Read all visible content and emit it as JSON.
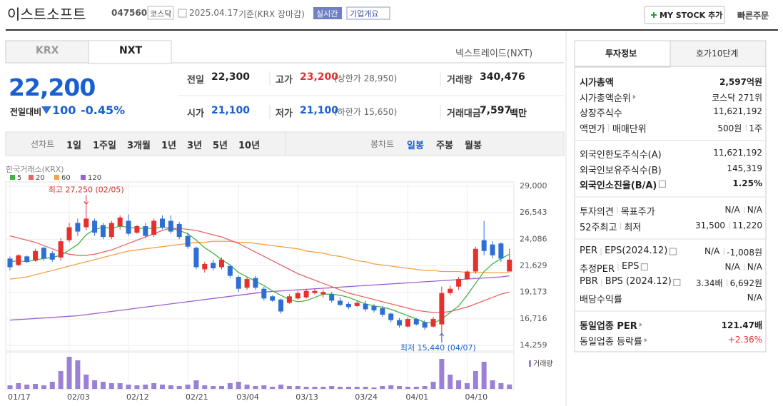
{
  "header": {
    "name": "이스트소프트",
    "code": "047560",
    "market": "코스닥",
    "date": "2025.04.17",
    "basis": "기준(KRX 장마감)",
    "realtime": "실시간",
    "company": "기업개요",
    "my_stock": "MY STOCK 추가",
    "quick_order": "빠른주문"
  },
  "exchange_tabs": [
    "KRX",
    "NXT"
  ],
  "nxt_link": "넥스트레이드(NXT)",
  "price": {
    "current": "22,200",
    "change_label": "전일대비",
    "change": "100",
    "change_rate": "-0.45%"
  },
  "quote": [
    [
      {
        "label": "전일",
        "value": "22,300"
      },
      {
        "label": "고가",
        "value": "23,200",
        "note": "(상한가 28,950)"
      },
      {
        "label": "거래량",
        "value": "340,476"
      }
    ],
    [
      {
        "label": "시가",
        "value": "21,100"
      },
      {
        "label": "저가",
        "value": "21,100",
        "note": "(하한가 15,650)"
      },
      {
        "label": "거래대금",
        "value": "7,597",
        "unit": "백만"
      }
    ]
  ],
  "period_tabs": {
    "label": "선차트",
    "items": [
      "1일",
      "1주일",
      "3개월",
      "1년",
      "3년",
      "5년",
      "10년"
    ]
  },
  "candle_tabs": {
    "label": "봉차트",
    "items": [
      "일봉",
      "주봉",
      "월봉"
    ]
  },
  "info_tabs": [
    "투자정보",
    "호가10단계"
  ],
  "info": [
    [
      {
        "labels": [
          "시가총액"
        ],
        "values": [
          "2,597억원"
        ]
      },
      {
        "labels": [
          "시가총액순위"
        ],
        "values": [
          "코스닥 271위"
        ]
      },
      {
        "labels": [
          "상장주식수"
        ],
        "values": [
          "11,621,192"
        ]
      },
      {
        "labels": [
          "액면가",
          "매매단위"
        ],
        "values": [
          "500원",
          "1주"
        ]
      }
    ],
    [
      {
        "labels": [
          "외국인한도주식수(A)"
        ],
        "values": [
          "11,621,192"
        ]
      },
      {
        "labels": [
          "외국인보유주식수(B)"
        ],
        "values": [
          "145,319"
        ]
      },
      {
        "labels": [
          "외국인소진율(B/A)"
        ],
        "values": [
          "1.25%"
        ]
      }
    ],
    [
      {
        "labels": [
          "투자의견",
          "목표주가"
        ],
        "values": [
          "N/A",
          "N/A"
        ]
      },
      {
        "labels": [
          "52주최고",
          "최저"
        ],
        "values": [
          "31,500",
          "11,220"
        ]
      }
    ],
    [
      {
        "labels": [
          "PER",
          "EPS(2024.12)"
        ],
        "values": [
          "N/A",
          "-1,008원"
        ]
      },
      {
        "labels": [
          "추정PER",
          "EPS"
        ],
        "values": [
          "N/A",
          "N/A"
        ]
      },
      {
        "labels": [
          "PBR",
          "BPS (2024.12)"
        ],
        "values": [
          "3.34배",
          "6,692원"
        ]
      },
      {
        "labels": [
          "배당수익률"
        ],
        "values": [
          "N/A"
        ]
      }
    ],
    [
      {
        "labels": [
          "동일업종 PER"
        ],
        "values": [
          "121.47배"
        ]
      },
      {
        "labels": [
          "동일업종 등락률"
        ],
        "values": [
          "+2.36%"
        ]
      }
    ]
  ],
  "chart_data": {
    "type": "candlestick",
    "source": "한국거래소(KRX)",
    "x": [
      "01/17",
      null,
      null,
      null,
      null,
      null,
      null,
      "02/03",
      null,
      null,
      null,
      null,
      null,
      null,
      "02/12",
      null,
      null,
      null,
      null,
      null,
      null,
      "02/21",
      null,
      null,
      null,
      null,
      null,
      "03/04",
      null,
      null,
      null,
      null,
      null,
      null,
      "03/13",
      null,
      null,
      null,
      null,
      null,
      null,
      "03/24",
      null,
      null,
      null,
      null,
      null,
      "04/01",
      null,
      null,
      null,
      null,
      null,
      null,
      "04/10",
      null,
      null,
      null,
      null,
      null
    ],
    "open": [
      22300,
      21700,
      22500,
      22100,
      23300,
      22800,
      22400,
      24000,
      25600,
      25200,
      25800,
      25400,
      24300,
      25300,
      25800,
      24700,
      25300,
      24500,
      26000,
      25800,
      25500,
      24400,
      23300,
      21300,
      21900,
      21500,
      21600,
      20600,
      19600,
      20500,
      19500,
      18800,
      18500,
      18200,
      18600,
      18700,
      19100,
      19000,
      19000,
      18400,
      18100,
      17900,
      18100,
      17900,
      17700,
      17200,
      16600,
      16000,
      16700,
      16400,
      16000,
      16200,
      19100,
      19700,
      20400,
      21100,
      24000,
      23600,
      23700,
      21100
    ],
    "high": [
      22500,
      22700,
      22600,
      23200,
      23400,
      23000,
      24200,
      25600,
      26000,
      27250,
      26000,
      25600,
      25800,
      26300,
      26400,
      25400,
      25600,
      26000,
      26300,
      26300,
      25700,
      24700,
      23400,
      22000,
      22200,
      22400,
      21700,
      20700,
      20600,
      20700,
      19700,
      18900,
      18600,
      19000,
      19300,
      19500,
      19500,
      19400,
      19200,
      18700,
      18300,
      18400,
      18400,
      18100,
      17900,
      17300,
      16800,
      16900,
      16800,
      16600,
      16900,
      19700,
      19800,
      20600,
      21200,
      23400,
      25800,
      23900,
      23800,
      23200
    ],
    "low": [
      21200,
      21600,
      21900,
      22000,
      22100,
      22000,
      22100,
      23800,
      24400,
      24900,
      24400,
      24100,
      24100,
      25000,
      24400,
      24600,
      24200,
      24300,
      25000,
      24600,
      24100,
      23200,
      21300,
      21000,
      21200,
      21300,
      20500,
      19200,
      19400,
      19400,
      18400,
      18300,
      17200,
      18100,
      18500,
      18600,
      19000,
      18700,
      18200,
      17900,
      17600,
      17800,
      17400,
      17300,
      16900,
      16400,
      15900,
      15900,
      16100,
      15700,
      15900,
      15440,
      18900,
      19400,
      20300,
      20900,
      22600,
      22300,
      22000,
      21100
    ],
    "close": [
      21500,
      22600,
      22000,
      23000,
      22300,
      22200,
      23900,
      25200,
      24800,
      26000,
      24700,
      24300,
      25600,
      26100,
      24600,
      25300,
      24400,
      25800,
      25200,
      24800,
      24300,
      23400,
      21500,
      21800,
      21400,
      22200,
      20700,
      19500,
      20400,
      19600,
      18600,
      18400,
      17400,
      18800,
      19100,
      19300,
      19300,
      19200,
      18400,
      18000,
      17800,
      18200,
      17600,
      17500,
      17100,
      16600,
      16100,
      16700,
      16200,
      15900,
      16700,
      19100,
      19500,
      20400,
      21100,
      23200,
      23000,
      22600,
      22300,
      22200
    ],
    "up_color": "#e5302d",
    "down_color": "#2f6fd4",
    "volume_label": "거래량",
    "volume_color": "#9c80d6",
    "volume": [
      275000,
      440000,
      330000,
      385000,
      275000,
      550000,
      1375000,
      2475000,
      2200000,
      1100000,
      660000,
      550000,
      440000,
      440000,
      330000,
      275000,
      330000,
      440000,
      330000,
      275000,
      220000,
      330000,
      660000,
      275000,
      220000,
      220000,
      440000,
      550000,
      330000,
      220000,
      275000,
      165000,
      330000,
      220000,
      220000,
      165000,
      165000,
      165000,
      220000,
      165000,
      165000,
      165000,
      165000,
      110000,
      220000,
      275000,
      220000,
      165000,
      165000,
      220000,
      550000,
      2310000,
      1100000,
      660000,
      440000,
      1375000,
      2090000,
      660000,
      440000,
      340476
    ],
    "series": [
      {
        "name": "5",
        "color": "#43b347",
        "values": [
          22000,
          22100,
          22000,
          22200,
          22300,
          22400,
          22600,
          23100,
          23600,
          24500,
          25000,
          25200,
          25100,
          25300,
          25200,
          25100,
          25100,
          25100,
          25200,
          25100,
          24900,
          24600,
          24000,
          23300,
          22800,
          22200,
          21700,
          21000,
          20600,
          20200,
          19800,
          19300,
          18900,
          18500,
          18300,
          18400,
          18700,
          19000,
          19000,
          18900,
          18700,
          18400,
          18100,
          17900,
          17800,
          17600,
          17300,
          17000,
          16700,
          16400,
          16300,
          16700,
          17300,
          17900,
          18900,
          20000,
          21100,
          21800,
          22300,
          22700
        ]
      },
      {
        "name": "20",
        "color": "#ea6462",
        "values": [
          24400,
          24200,
          24000,
          23800,
          23500,
          23200,
          22900,
          22700,
          22600,
          22600,
          22700,
          22900,
          23100,
          23400,
          23700,
          24000,
          24300,
          24600,
          24900,
          25100,
          25100,
          25000,
          24900,
          24700,
          24500,
          24300,
          24000,
          23700,
          23300,
          22900,
          22500,
          22100,
          21700,
          21300,
          20900,
          20600,
          20300,
          20000,
          19700,
          19400,
          19100,
          18900,
          18700,
          18500,
          18300,
          18100,
          17900,
          17700,
          17500,
          17400,
          17300,
          17300,
          17400,
          17600,
          17800,
          18100,
          18400,
          18700,
          19000,
          19200
        ]
      },
      {
        "name": "60",
        "color": "#f4a245",
        "values": [
          20400,
          20500,
          20600,
          20800,
          21000,
          21200,
          21400,
          21600,
          21800,
          22000,
          22200,
          22400,
          22600,
          22800,
          23000,
          23100,
          23200,
          23300,
          23400,
          23500,
          23600,
          23700,
          23800,
          23800,
          23900,
          23900,
          23900,
          23800,
          23800,
          23700,
          23600,
          23500,
          23400,
          23300,
          23200,
          23000,
          22900,
          22800,
          22600,
          22500,
          22300,
          22100,
          22000,
          21800,
          21700,
          21600,
          21500,
          21400,
          21300,
          21200,
          21200,
          21100,
          21100,
          21100,
          21000,
          21000,
          21000,
          21000,
          21000,
          21000
        ]
      },
      {
        "name": "120",
        "color": "#9c5fd2",
        "values": [
          16600,
          16650,
          16700,
          16750,
          16800,
          16850,
          16900,
          16950,
          17000,
          17100,
          17200,
          17300,
          17400,
          17500,
          17600,
          17700,
          17800,
          17900,
          18000,
          18100,
          18200,
          18300,
          18400,
          18500,
          18600,
          18700,
          18800,
          18900,
          19000,
          19100,
          19200,
          19250,
          19300,
          19350,
          19400,
          19450,
          19500,
          19550,
          19600,
          19650,
          19700,
          19750,
          19800,
          19850,
          19900,
          19950,
          20000,
          20050,
          20100,
          20150,
          20200,
          20250,
          20300,
          20350,
          20400,
          20450,
          20500,
          20550,
          20600,
          20700
        ]
      }
    ],
    "ylim": [
      14259,
      29000
    ],
    "yticks": [
      {
        "value": 14259,
        "label": "14,259"
      },
      {
        "value": 16716,
        "label": "16,716"
      },
      {
        "value": 19173,
        "label": "19,173"
      },
      {
        "value": 21629,
        "label": "21,629"
      },
      {
        "value": 24086,
        "label": "24,086"
      },
      {
        "value": 26543,
        "label": "26,543"
      },
      {
        "value": 29000,
        "label": "29,000"
      }
    ],
    "grid": true,
    "annotations": {
      "high": "최고 27,250 (02/05)",
      "low": "최저 15,440 (04/07)"
    }
  }
}
